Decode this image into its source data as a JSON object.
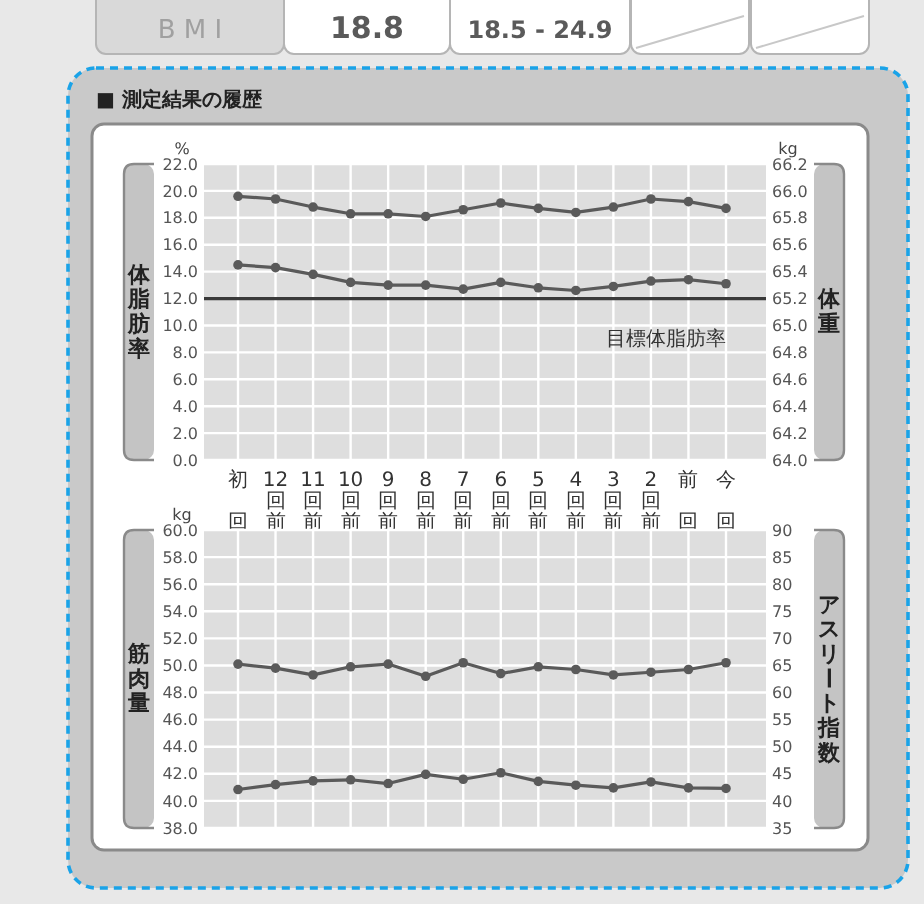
{
  "chart_data": [
    {
      "type": "other",
      "annotations": [
        "B M I",
        "18.8",
        "18.5 - 24.9"
      ]
    },
    {
      "type": "line",
      "title": "■ 測定結果の履歴",
      "ylabel": "体脂肪率",
      "y2label": "体重",
      "annotations": [
        "%",
        "kg"
      ],
      "categories": [
        "初回",
        "12回前",
        "11回前",
        "10回前",
        "9回前",
        "8回前",
        "7回前",
        "6回前",
        "5回前",
        "4回前",
        "3回前",
        "2回前",
        "前回",
        "今回"
      ],
      "series": [
        {
          "color": "#5a5a5a",
          "values": [
            14.5,
            14.3,
            13.8,
            13.2,
            13.0,
            13.0,
            12.7,
            13.2,
            12.8,
            12.6,
            12.9,
            13.3,
            13.4,
            13.1
          ]
        },
        {
          "color": "#5a5a5a",
          "axis": "y2",
          "values": [
            65.96,
            65.94,
            65.88,
            65.83,
            65.83,
            65.81,
            65.86,
            65.91,
            65.87,
            65.84,
            65.88,
            65.94,
            65.92,
            65.87
          ]
        }
      ],
      "ylim": [
        0,
        22
      ],
      "yticks": [
        {
          "value": 0,
          "label": "0.0"
        },
        {
          "value": 2,
          "label": "2.0"
        },
        {
          "value": 4,
          "label": "4.0"
        },
        {
          "value": 6,
          "label": "6.0"
        },
        {
          "value": 8,
          "label": "8.0"
        },
        {
          "value": 10,
          "label": "10.0"
        },
        {
          "value": 12,
          "label": "12.0"
        },
        {
          "value": 14,
          "label": "14.0"
        },
        {
          "value": 16,
          "label": "16.0"
        },
        {
          "value": 18,
          "label": "18.0"
        },
        {
          "value": 20,
          "label": "20.0"
        },
        {
          "value": 22,
          "label": "22.0"
        }
      ],
      "y2lim": [
        64,
        66.2
      ],
      "y2ticks": [
        {
          "value": 64,
          "label": "64.0"
        },
        64.2,
        64.4,
        64.6,
        64.8,
        {
          "value": 65,
          "label": "65.0"
        },
        65.2,
        65.4,
        65.6,
        65.8,
        {
          "value": 66,
          "label": "66.0"
        },
        66.2
      ],
      "ref_lines": [
        {
          "axis": "y",
          "value": 12,
          "label": "目標体脂肪率",
          "color": "#3a3a3a"
        }
      ],
      "grid": true,
      "marker": "circle"
    },
    {
      "type": "line",
      "ylabel": "筋肉量",
      "y2label": "アスリート指数",
      "annotations": [
        "kg"
      ],
      "categories": [
        "初回",
        "12回前",
        "11回前",
        "10回前",
        "9回前",
        "8回前",
        "7回前",
        "6回前",
        "5回前",
        "4回前",
        "3回前",
        "2回前",
        "前回",
        "今回"
      ],
      "series": [
        {
          "color": "#5a5a5a",
          "values": [
            50.1,
            49.8,
            49.3,
            49.9,
            50.1,
            49.2,
            50.2,
            49.4,
            49.9,
            49.7,
            49.3,
            49.5,
            49.7,
            50.2
          ]
        },
        {
          "color": "#5a5a5a",
          "axis": "y2",
          "values": [
            42.1,
            43.0,
            43.7,
            43.9,
            43.2,
            44.9,
            44.0,
            45.2,
            43.6,
            42.9,
            42.4,
            43.5,
            42.4,
            42.3
          ]
        }
      ],
      "ylim": [
        38,
        60
      ],
      "yticks": [
        {
          "value": 38,
          "label": "38.0"
        },
        {
          "value": 40,
          "label": "40.0"
        },
        {
          "value": 42,
          "label": "42.0"
        },
        {
          "value": 44,
          "label": "44.0"
        },
        {
          "value": 46,
          "label": "46.0"
        },
        {
          "value": 48,
          "label": "48.0"
        },
        {
          "value": 50,
          "label": "50.0"
        },
        {
          "value": 52,
          "label": "52.0"
        },
        {
          "value": 54,
          "label": "54.0"
        },
        {
          "value": 56,
          "label": "56.0"
        },
        {
          "value": 58,
          "label": "58.0"
        },
        {
          "value": 60,
          "label": "60.0"
        }
      ],
      "y2lim": [
        35,
        90
      ],
      "y2ticks": [
        35,
        40,
        45,
        50,
        55,
        60,
        65,
        70,
        75,
        80,
        85,
        90
      ],
      "grid": true,
      "marker": "circle",
      "tick_labels": "y"
    }
  ]
}
